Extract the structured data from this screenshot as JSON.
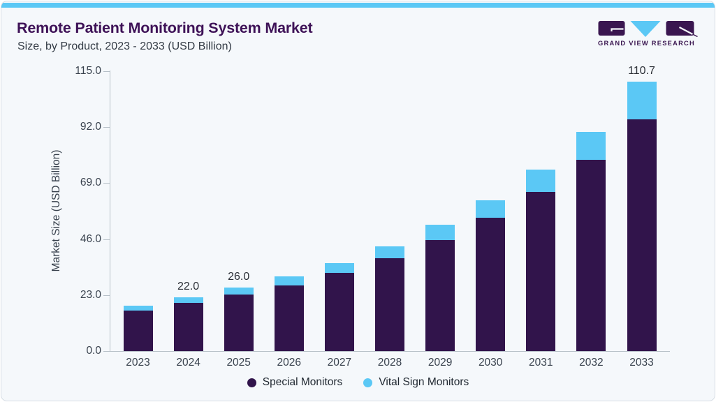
{
  "header": {
    "title": "Remote Patient Monitoring System Market",
    "subtitle": "Size, by Product, 2023 - 2033 (USD Billion)",
    "logo_text": "GRAND VIEW RESEARCH"
  },
  "colors": {
    "accent_strip": "#5bc8f5",
    "title_purple": "#3e1257",
    "special_monitors": "#31144B",
    "vital_sign_monitors": "#5BC8F5",
    "card_background": "#f5f8fb",
    "axis_line": "#b7c0c8"
  },
  "chart_data": {
    "type": "bar",
    "stacked": true,
    "title": "Remote Patient Monitoring System Market",
    "subtitle": "Size, by Product, 2023 - 2033 (USD Billion)",
    "categories": [
      "2023",
      "2024",
      "2025",
      "2026",
      "2027",
      "2028",
      "2029",
      "2030",
      "2031",
      "2032",
      "2033"
    ],
    "series": [
      {
        "name": "Special Monitors",
        "color": "#31144B",
        "values": [
          16.5,
          19.9,
          23.1,
          27.0,
          32.1,
          38.2,
          45.7,
          54.7,
          65.5,
          78.7,
          95.2
        ]
      },
      {
        "name": "Vital Sign Monitors",
        "color": "#5BC8F5",
        "values": [
          2.1,
          2.1,
          2.9,
          3.8,
          4.1,
          4.8,
          6.3,
          7.3,
          9.0,
          11.3,
          15.5
        ]
      }
    ],
    "totals": [
      18.6,
      22.0,
      26.0,
      30.8,
      36.2,
      43.0,
      52.0,
      62.0,
      74.5,
      90.0,
      110.7
    ],
    "point_labels": [
      "",
      "22.0",
      "26.0",
      "",
      "",
      "",
      "",
      "",
      "",
      "",
      "110.7"
    ],
    "xlabel": "",
    "ylabel": "Market Size (USD Billion)",
    "ylim": [
      0,
      115
    ],
    "yticks": [
      "115.0",
      "92.0",
      "69.0",
      "46.0",
      "23.0",
      "0.0"
    ],
    "grid": false,
    "legend_position": "bottom"
  }
}
